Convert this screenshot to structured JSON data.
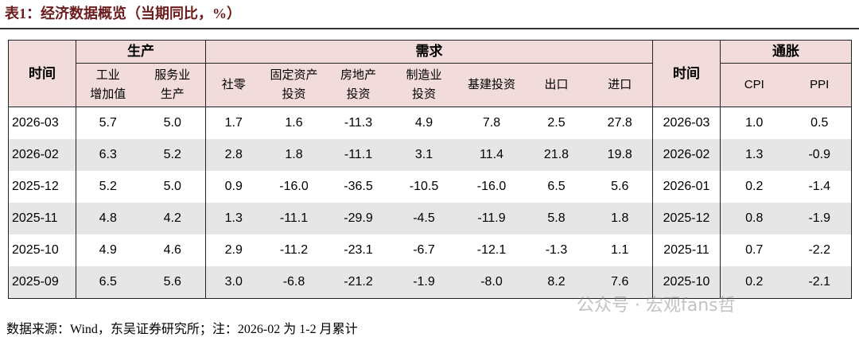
{
  "title": "表1：经济数据概览（当期同比，%）",
  "table": {
    "group_headers": [
      {
        "label": "时间",
        "colspan": 1,
        "rowspan": 2
      },
      {
        "label": "生产",
        "colspan": 2,
        "rowspan": 1
      },
      {
        "label": "需求",
        "colspan": 7,
        "rowspan": 1
      },
      {
        "label": "时间",
        "colspan": 1,
        "rowspan": 2
      },
      {
        "label": "通胀",
        "colspan": 2,
        "rowspan": 1
      }
    ],
    "sub_headers": [
      "工业\n增加值",
      "服务业\n生产",
      "社零",
      "固定资产\n投资",
      "房地产\n投资",
      "制造业\n投资",
      "基建投资",
      "出口",
      "进口",
      "CPI",
      "PPI"
    ],
    "rows": [
      [
        "2026-03",
        "5.7",
        "5.0",
        "1.7",
        "1.6",
        "-11.3",
        "4.9",
        "7.8",
        "2.5",
        "27.8",
        "2026-03",
        "1.0",
        "0.5"
      ],
      [
        "2026-02",
        "6.3",
        "5.2",
        "2.8",
        "1.8",
        "-11.1",
        "3.1",
        "11.4",
        "21.8",
        "19.8",
        "2026-02",
        "1.3",
        "-0.9"
      ],
      [
        "2025-12",
        "5.2",
        "5.0",
        "0.9",
        "-16.0",
        "-36.5",
        "-10.5",
        "-16.0",
        "6.5",
        "5.6",
        "2026-01",
        "0.2",
        "-1.4"
      ],
      [
        "2025-11",
        "4.8",
        "4.2",
        "1.3",
        "-11.1",
        "-29.9",
        "-4.5",
        "-11.9",
        "5.8",
        "1.8",
        "2025-12",
        "0.8",
        "-1.9"
      ],
      [
        "2025-10",
        "4.9",
        "4.6",
        "2.9",
        "-11.2",
        "-23.1",
        "-6.7",
        "-12.1",
        "-1.3",
        "1.1",
        "2025-11",
        "0.7",
        "-2.2"
      ],
      [
        "2025-09",
        "6.5",
        "5.6",
        "3.0",
        "-6.8",
        "-21.2",
        "-1.9",
        "-8.0",
        "8.2",
        "7.6",
        "2025-10",
        "0.2",
        "-2.1"
      ]
    ]
  },
  "source": "数据来源：Wind，东吴证券研究所；注：2026-02 为 1-2 月累计",
  "watermark": "公众号 · 宏观fans哲"
}
